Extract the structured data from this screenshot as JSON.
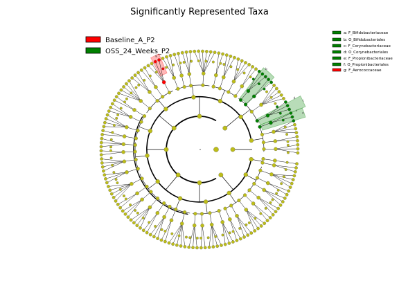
{
  "chart_data": {
    "type": "cladogram",
    "title": "Significantly Represented Taxa",
    "legend": [
      {
        "name": "Baseline_A_P2",
        "color": "#ff0000"
      },
      {
        "name": "OSS_24_Weeks_P2",
        "color": "#008000"
      }
    ],
    "taxa_key": [
      {
        "label": "a: F_Bifidobacteriaceae",
        "group": "OSS_24_Weeks_P2",
        "color": "#008000"
      },
      {
        "label": "b: O_Bifidobacteriales",
        "group": "OSS_24_Weeks_P2",
        "color": "#008000"
      },
      {
        "label": "c: F_Corynebacteriaceae",
        "group": "OSS_24_Weeks_P2",
        "color": "#008000"
      },
      {
        "label": "d: O_Corynebacteriales",
        "group": "OSS_24_Weeks_P2",
        "color": "#008000"
      },
      {
        "label": "e: F_Propionibacteriaceae",
        "group": "OSS_24_Weeks_P2",
        "color": "#008000"
      },
      {
        "label": "f: O_Propionibacteriales",
        "group": "OSS_24_Weeks_P2",
        "color": "#008000"
      },
      {
        "label": "g: F_Aerococcaceae",
        "group": "Baseline_A_P2",
        "color": "#ff0000"
      }
    ],
    "clade_labels": [
      "a",
      "b",
      "c",
      "d",
      "e",
      "f",
      "g"
    ],
    "node_color_default": "#bdbd19",
    "leaf_count": 150
  }
}
